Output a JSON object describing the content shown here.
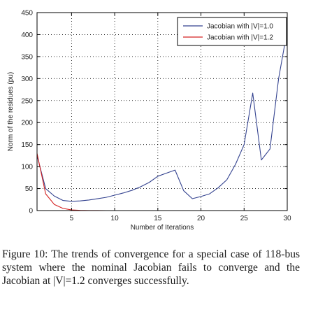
{
  "chart_data": {
    "type": "line",
    "xlabel": "Number of Iterations",
    "ylabel": "Norm of the residues (pu)",
    "xlim": [
      1,
      30
    ],
    "ylim": [
      0,
      450
    ],
    "xticks": [
      5,
      10,
      15,
      20,
      25,
      30
    ],
    "yticks": [
      0,
      50,
      100,
      150,
      200,
      250,
      300,
      350,
      400,
      450
    ],
    "grid": true,
    "legend_position": "top-right",
    "series": [
      {
        "name": "Jacobian with |V|=1.0",
        "color": "#33428f",
        "x": [
          1,
          2,
          3,
          4,
          5,
          6,
          7,
          8,
          9,
          10,
          11,
          12,
          13,
          14,
          15,
          16,
          17,
          18,
          19,
          20,
          21,
          22,
          23,
          24,
          25,
          26,
          27,
          28,
          29,
          30
        ],
        "y": [
          125,
          50,
          33,
          23,
          21,
          22,
          24,
          27,
          30,
          35,
          40,
          46,
          54,
          64,
          78,
          85,
          92,
          45,
          27,
          32,
          38,
          52,
          70,
          105,
          150,
          267,
          115,
          140,
          300,
          410
        ]
      },
      {
        "name": "Jacobian with |V|=1.2",
        "color": "#d42020",
        "x": [
          1,
          2,
          3,
          4,
          5,
          6,
          7,
          8,
          9,
          10,
          11,
          12,
          13,
          14,
          15,
          16,
          17,
          18,
          19,
          20,
          21,
          22,
          23,
          24,
          25,
          26,
          27,
          28,
          29,
          30
        ],
        "y": [
          130,
          38,
          14,
          5,
          1.5,
          0.5,
          0.2,
          0.1,
          0,
          0,
          0,
          0,
          0,
          0,
          0,
          0,
          0,
          0,
          0,
          0,
          0,
          0,
          0,
          0,
          0,
          0,
          0,
          0,
          0,
          0
        ]
      }
    ]
  },
  "caption": "Figure 10:  The trends of convergence for a special case of 118-bus system where the nominal Jacobian fails to converge and the Jacobian at |V|=1.2 converges successfully."
}
